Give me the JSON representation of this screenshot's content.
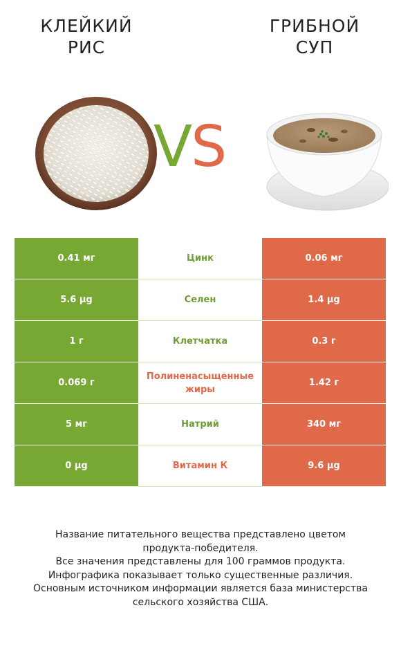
{
  "left_title_line1": "КЛЕЙКИЙ",
  "left_title_line2": "РИС",
  "right_title_line1": "ГРИБНОЙ",
  "right_title_line2": "СУП",
  "vs_v": "V",
  "vs_s": "S",
  "colors": {
    "green": "#78a834",
    "orange": "#e0694a"
  },
  "rows": [
    {
      "left": "0.41 мг",
      "name": "Цинк",
      "right": "0.06 мг",
      "winner": "left"
    },
    {
      "left": "5.6 µg",
      "name": "Селен",
      "right": "1.4 µg",
      "winner": "left"
    },
    {
      "left": "1 г",
      "name": "Клетчатка",
      "right": "0.3 г",
      "winner": "left"
    },
    {
      "left": "0.069 г",
      "name": "Полиненасыщенные жиры",
      "right": "1.42 г",
      "winner": "right"
    },
    {
      "left": "5 мг",
      "name": "Натрий",
      "right": "340 мг",
      "winner": "left"
    },
    {
      "left": "0 µg",
      "name": "Витамин К",
      "right": "9.6 µg",
      "winner": "right"
    }
  ],
  "footer": {
    "line1": "Название питательного вещества представлено цветом",
    "line2": "продукта-победителя.",
    "line3": "Все значения представлены для 100 граммов продукта.",
    "line4": "Инфографика показывает только существенные различия.",
    "line5": "Основным источником информации является база министерства",
    "line6": "сельского хозяйства США."
  }
}
